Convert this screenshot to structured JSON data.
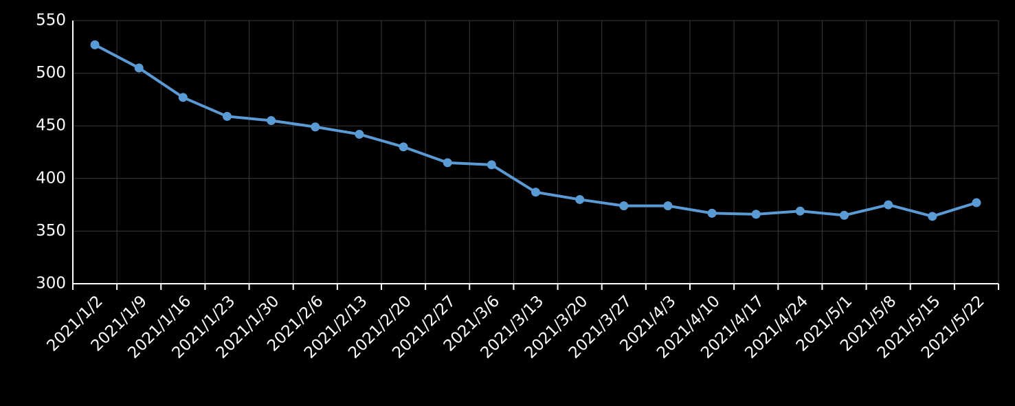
{
  "chart_data": {
    "type": "line",
    "categories": [
      "2021/1/2",
      "2021/1/9",
      "2021/1/16",
      "2021/1/23",
      "2021/1/30",
      "2021/2/6",
      "2021/2/13",
      "2021/2/20",
      "2021/2/27",
      "2021/3/6",
      "2021/3/13",
      "2021/3/20",
      "2021/3/27",
      "2021/4/3",
      "2021/4/10",
      "2021/4/17",
      "2021/4/24",
      "2021/5/1",
      "2021/5/8",
      "2021/5/15",
      "2021/5/22"
    ],
    "values": [
      527,
      505,
      477,
      459,
      455,
      449,
      442,
      430,
      415,
      413,
      387,
      380,
      374,
      374,
      367,
      366,
      369,
      365,
      375,
      364,
      377
    ],
    "color": "#5b9bd5",
    "ylim": [
      300,
      550
    ],
    "yticks": [
      300,
      350,
      400,
      450,
      500,
      550
    ],
    "grid": true
  }
}
